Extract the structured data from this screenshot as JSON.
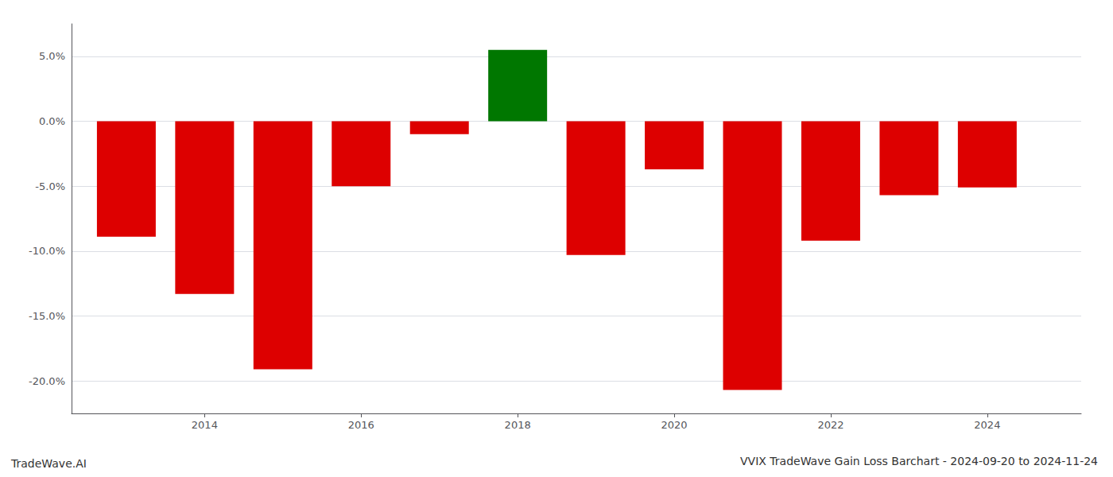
{
  "chart_data": {
    "type": "bar",
    "title": "VVIX TradeWave Gain Loss Barchart - 2024-09-20 to 2024-11-24",
    "annotations": [
      "TradeWave.AI"
    ],
    "x": [
      2013,
      2014,
      2015,
      2016,
      2017,
      2018,
      2019,
      2020,
      2021,
      2022,
      2023,
      2024
    ],
    "values": [
      -0.089,
      -0.133,
      -0.191,
      -0.05,
      -0.01,
      0.055,
      -0.103,
      -0.037,
      -0.207,
      -0.092,
      -0.057,
      -0.051
    ],
    "colors": [
      "#dd0000",
      "#dd0000",
      "#dd0000",
      "#dd0000",
      "#dd0000",
      "#007700",
      "#dd0000",
      "#dd0000",
      "#dd0000",
      "#dd0000",
      "#dd0000",
      "#dd0000"
    ],
    "xlim": [
      2012.3,
      2025.2
    ],
    "xticks": [
      2014,
      2016,
      2018,
      2020,
      2022,
      2024
    ],
    "ylim": [
      -0.225,
      0.075
    ],
    "yticks": [
      {
        "value": -0.2,
        "label": "-20.0%"
      },
      {
        "value": -0.15,
        "label": "-15.0%"
      },
      {
        "value": -0.1,
        "label": "-10.0%"
      },
      {
        "value": -0.05,
        "label": "-5.0%"
      },
      {
        "value": 0,
        "label": "0.0%"
      },
      {
        "value": 0.05,
        "label": "5.0%"
      }
    ],
    "grid": true
  }
}
